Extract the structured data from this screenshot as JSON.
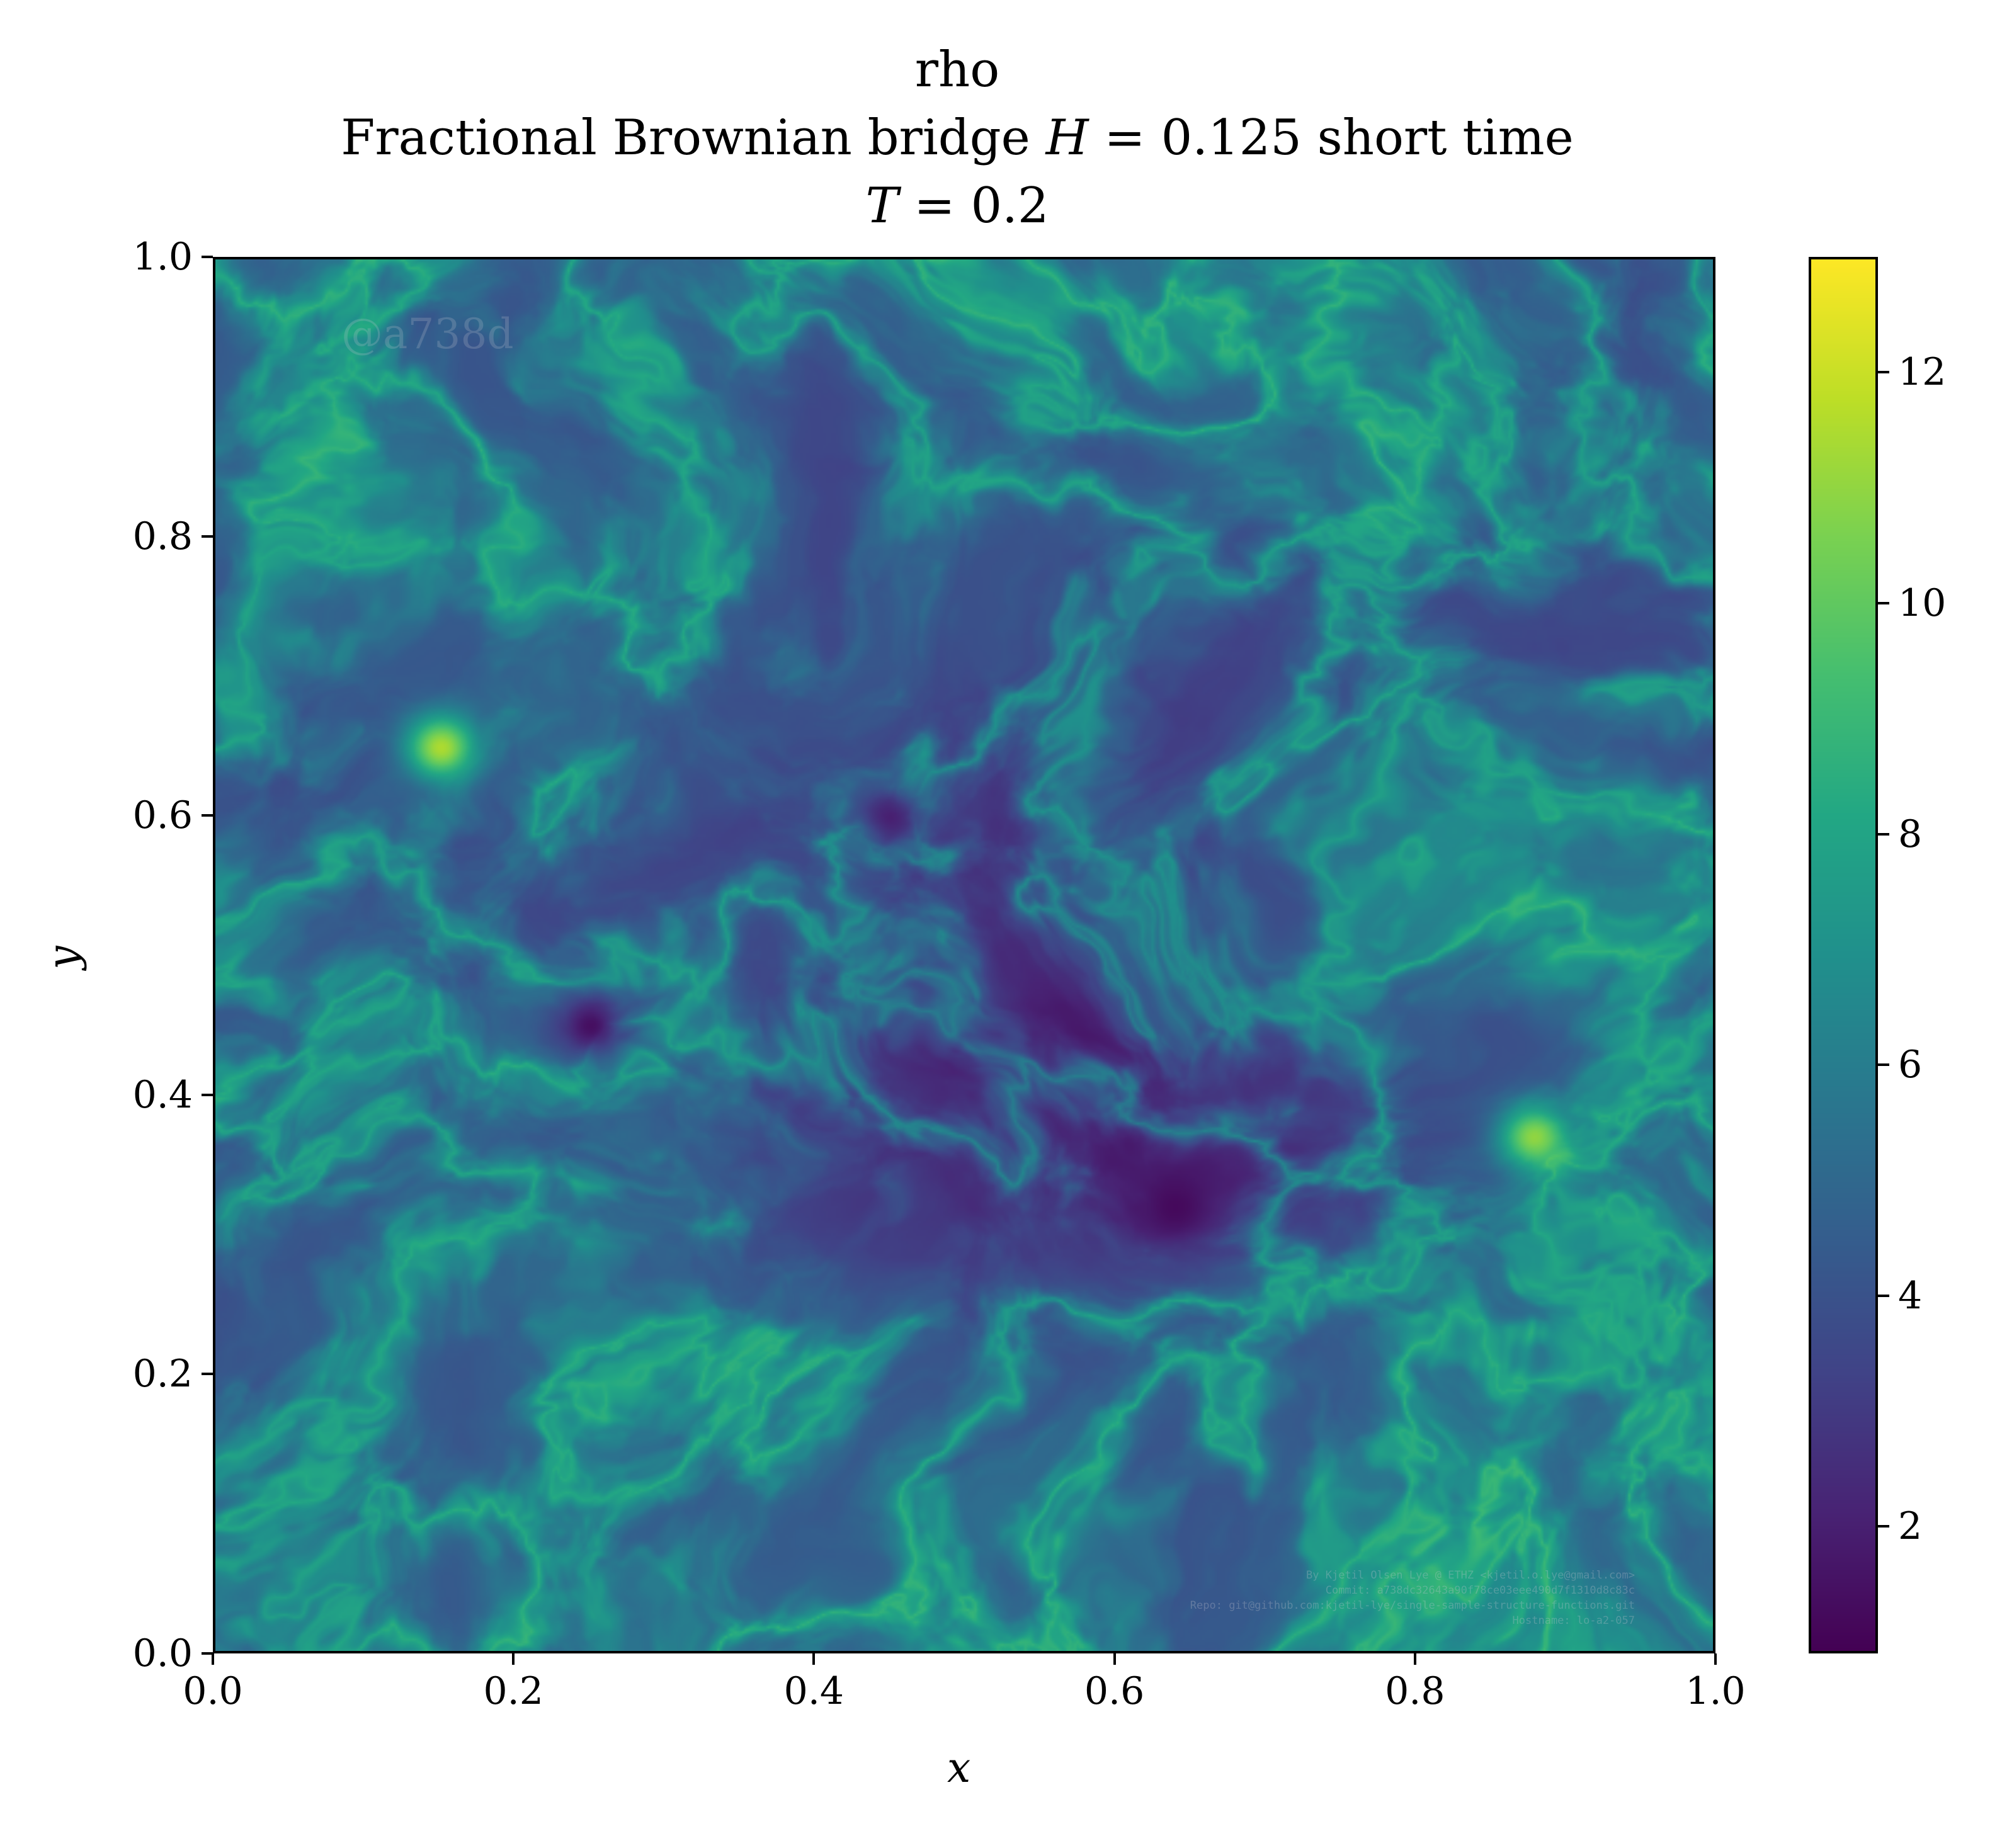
{
  "chart_data": {
    "type": "heatmap",
    "title_lines": [
      "rho",
      "Fractional Brownian bridge H = 0.125 short time",
      "T = 0.2"
    ],
    "xlabel": "x",
    "ylabel": "y",
    "xlim": [
      0.0,
      1.0
    ],
    "ylim": [
      0.0,
      1.0
    ],
    "x_ticks": [
      "0.0",
      "0.2",
      "0.4",
      "0.6",
      "0.8",
      "1.0"
    ],
    "y_ticks": [
      "0.0",
      "0.2",
      "0.4",
      "0.6",
      "0.8",
      "1.0"
    ],
    "colormap": "viridis",
    "colorbar": {
      "min": 0.9,
      "max": 13.0,
      "ticks": [
        2,
        4,
        6,
        8,
        10,
        12
      ],
      "tick_labels": [
        "2",
        "4",
        "6",
        "8",
        "10",
        "12"
      ]
    },
    "grid": false,
    "notable_regions": [
      {
        "x": 0.15,
        "y": 0.65,
        "value": 11.5
      },
      {
        "x": 0.88,
        "y": 0.37,
        "value": 11
      },
      {
        "x": 0.64,
        "y": 0.32,
        "value": 1.2
      },
      {
        "x": 0.25,
        "y": 0.45,
        "value": 1.4
      },
      {
        "x": 0.45,
        "y": 0.6,
        "value": 2.0
      }
    ]
  },
  "watermarks": {
    "commit_tag": "@a738d",
    "footer_lines": [
      "By Kjetil Olsen Lye @ ETHZ <kjetil.o.lye@gmail.com>",
      "Commit: a738dc32643a90f78ce03eee490d7f1310d8c83c",
      "Repo: git@github.com:kjetil-lye/single-sample-structure-functions.git",
      "Hostname: lo-a2-057"
    ]
  }
}
